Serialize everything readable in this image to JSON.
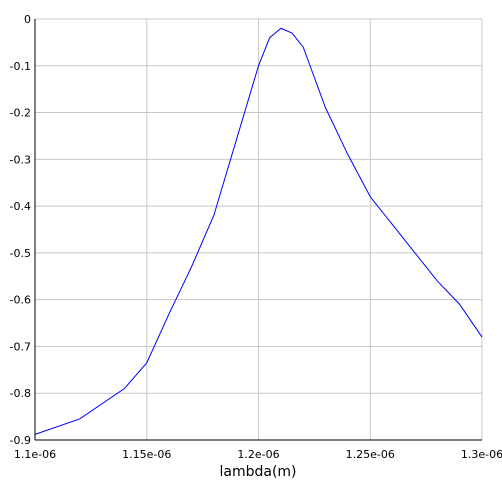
{
  "chart_data": {
    "type": "line",
    "x_label": "lambda(m)",
    "x": [
      1.1e-06,
      1.12e-06,
      1.14e-06,
      1.15e-06,
      1.16e-06,
      1.17e-06,
      1.18e-06,
      1.19e-06,
      1.2e-06,
      1.205e-06,
      1.21e-06,
      1.215e-06,
      1.22e-06,
      1.23e-06,
      1.24e-06,
      1.25e-06,
      1.26e-06,
      1.27e-06,
      1.28e-06,
      1.29e-06,
      1.3e-06
    ],
    "series": [
      {
        "color": "#0000ff",
        "values": [
          -0.888,
          -0.855,
          -0.79,
          -0.735,
          -0.63,
          -0.53,
          -0.42,
          -0.26,
          -0.1,
          -0.04,
          -0.02,
          -0.03,
          -0.06,
          -0.19,
          -0.29,
          -0.38,
          -0.44,
          -0.5,
          -0.56,
          -0.61,
          -0.68
        ]
      }
    ],
    "xlim": [
      1.1e-06,
      1.3e-06
    ],
    "xticks": [
      {
        "value": 1.1e-06,
        "label": "1.1e-06"
      },
      {
        "value": 1.15e-06,
        "label": "1.15e-06"
      },
      {
        "value": 1.2e-06,
        "label": "1.2e-06"
      },
      {
        "value": 1.25e-06,
        "label": "1.25e-06"
      },
      {
        "value": 1.3e-06,
        "label": "1.3e-06"
      }
    ],
    "ylim": [
      -0.9,
      0
    ],
    "yticks": [
      0,
      -0.1,
      -0.2,
      -0.3,
      -0.4,
      -0.5,
      -0.6,
      -0.7,
      -0.8,
      -0.9
    ],
    "grid": true
  }
}
